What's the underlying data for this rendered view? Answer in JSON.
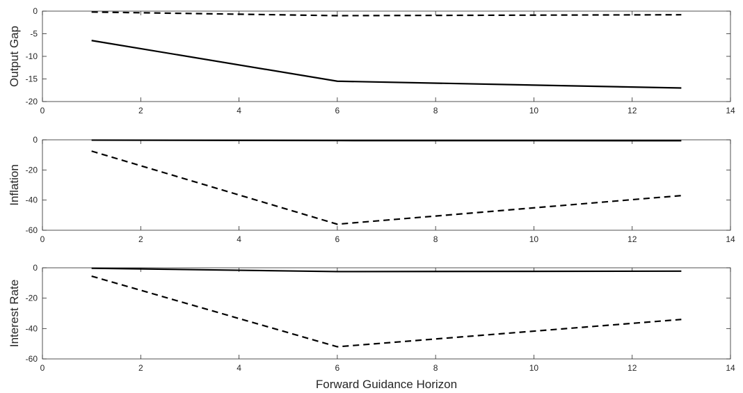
{
  "chart_data": [
    {
      "type": "line",
      "ylabel": "Output Gap",
      "xlabel": "",
      "xlim": [
        0,
        14
      ],
      "ylim": [
        -20,
        0
      ],
      "xticks": [
        0,
        2,
        4,
        6,
        8,
        10,
        12,
        14
      ],
      "yticks": [
        0,
        -5,
        -10,
        -15,
        -20
      ],
      "grid": false,
      "x": [
        1,
        6,
        13
      ],
      "series": [
        {
          "style": "solid",
          "values": [
            -6.5,
            -15.5,
            -17
          ]
        },
        {
          "style": "dashed",
          "values": [
            -0.2,
            -1.0,
            -0.8
          ]
        }
      ]
    },
    {
      "type": "line",
      "ylabel": "Inflation",
      "xlabel": "",
      "xlim": [
        0,
        14
      ],
      "ylim": [
        -60,
        0
      ],
      "xticks": [
        0,
        2,
        4,
        6,
        8,
        10,
        12,
        14
      ],
      "yticks": [
        0,
        -20,
        -40,
        -60
      ],
      "grid": false,
      "x": [
        1,
        6,
        13
      ],
      "series": [
        {
          "style": "solid",
          "values": [
            -0.2,
            -0.5,
            -0.6
          ]
        },
        {
          "style": "dashed",
          "values": [
            -7.5,
            -56,
            -37
          ]
        }
      ]
    },
    {
      "type": "line",
      "ylabel": "Interest Rate",
      "xlabel": "Forward Guidance Horizon",
      "xlim": [
        0,
        14
      ],
      "ylim": [
        -60,
        0
      ],
      "xticks": [
        0,
        2,
        4,
        6,
        8,
        10,
        12,
        14
      ],
      "yticks": [
        0,
        -20,
        -40,
        -60
      ],
      "grid": false,
      "x": [
        1,
        6,
        13
      ],
      "series": [
        {
          "style": "solid",
          "values": [
            -0.3,
            -2.5,
            -2.2
          ]
        },
        {
          "style": "dashed",
          "values": [
            -5.5,
            -52,
            -34
          ]
        }
      ]
    }
  ]
}
